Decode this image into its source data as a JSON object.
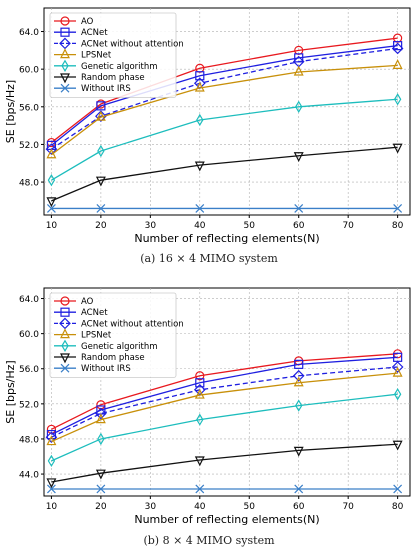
{
  "chart_data": [
    {
      "type": "line",
      "caption": "(a)  16 × 4 MIMO system",
      "xlabel": "Number of reflecting elements(N)",
      "ylabel": "SE [bps/Hz]",
      "xlim": [
        8.5,
        82.5
      ],
      "ylim": [
        44.5,
        66.5
      ],
      "x": [
        10,
        20,
        40,
        60,
        80
      ],
      "xticks": [
        10,
        20,
        30,
        40,
        50,
        60,
        70,
        80
      ],
      "yticks": [
        48.0,
        52.0,
        56.0,
        60.0,
        64.0
      ],
      "legend_position": "top-left",
      "grid": true,
      "series": [
        {
          "name": "AO",
          "color": "#e8191f",
          "marker": "circle",
          "dash": false,
          "values": [
            52.2,
            56.3,
            60.1,
            62.0,
            63.3
          ]
        },
        {
          "name": "ACNet",
          "color": "#1f1fe0",
          "marker": "square",
          "dash": false,
          "values": [
            51.9,
            56.1,
            59.3,
            61.2,
            62.5
          ]
        },
        {
          "name": "ACNet without attention",
          "color": "#1f1fe0",
          "marker": "diamond",
          "dash": true,
          "values": [
            51.5,
            55.0,
            58.5,
            60.8,
            62.2
          ]
        },
        {
          "name": "LPSNet",
          "color": "#c8900a",
          "marker": "triangle-up",
          "dash": false,
          "values": [
            50.9,
            54.9,
            58.0,
            59.7,
            60.4
          ]
        },
        {
          "name": "Genetic algorithm",
          "color": "#1dbdbd",
          "marker": "thin-diamond",
          "dash": false,
          "values": [
            48.2,
            51.3,
            54.6,
            56.0,
            56.8
          ]
        },
        {
          "name": "Random phase",
          "color": "#111111",
          "marker": "triangle-down",
          "dash": false,
          "values": [
            46.0,
            48.2,
            49.8,
            50.8,
            51.7
          ]
        },
        {
          "name": "Without IRS",
          "color": "#3a7fc8",
          "marker": "x",
          "dash": false,
          "values": [
            45.2,
            45.2,
            45.2,
            45.2,
            45.2
          ]
        }
      ]
    },
    {
      "type": "line",
      "caption": "(b)  8 × 4 MIMO system",
      "xlabel": "Number of reflecting elements(N)",
      "ylabel": "SE [bps/Hz]",
      "xlim": [
        8.5,
        82.5
      ],
      "ylim": [
        41.5,
        65.2
      ],
      "x": [
        10,
        20,
        40,
        60,
        80
      ],
      "xticks": [
        10,
        20,
        30,
        40,
        50,
        60,
        70,
        80
      ],
      "yticks": [
        44.0,
        48.0,
        52.0,
        56.0,
        60.0,
        64.0
      ],
      "legend_position": "top-left",
      "grid": true,
      "series": [
        {
          "name": "AO",
          "color": "#e8191f",
          "marker": "circle",
          "dash": false,
          "values": [
            49.1,
            51.9,
            55.2,
            56.9,
            57.7
          ]
        },
        {
          "name": "ACNet",
          "color": "#1f1fe0",
          "marker": "square",
          "dash": false,
          "values": [
            48.5,
            51.3,
            54.4,
            56.5,
            57.3
          ]
        },
        {
          "name": "ACNet without attention",
          "color": "#1f1fe0",
          "marker": "diamond",
          "dash": true,
          "values": [
            48.2,
            50.9,
            53.6,
            55.2,
            56.2
          ]
        },
        {
          "name": "LPSNet",
          "color": "#c8900a",
          "marker": "triangle-up",
          "dash": false,
          "values": [
            47.7,
            50.2,
            53.0,
            54.4,
            55.5
          ]
        },
        {
          "name": "Genetic algorithm",
          "color": "#1dbdbd",
          "marker": "thin-diamond",
          "dash": false,
          "values": [
            45.5,
            48.0,
            50.2,
            51.8,
            53.1
          ]
        },
        {
          "name": "Random phase",
          "color": "#111111",
          "marker": "triangle-down",
          "dash": false,
          "values": [
            43.1,
            44.1,
            45.6,
            46.7,
            47.4
          ]
        },
        {
          "name": "Without IRS",
          "color": "#3a7fc8",
          "marker": "x",
          "dash": false,
          "values": [
            42.3,
            42.3,
            42.3,
            42.3,
            42.3
          ]
        }
      ]
    }
  ]
}
